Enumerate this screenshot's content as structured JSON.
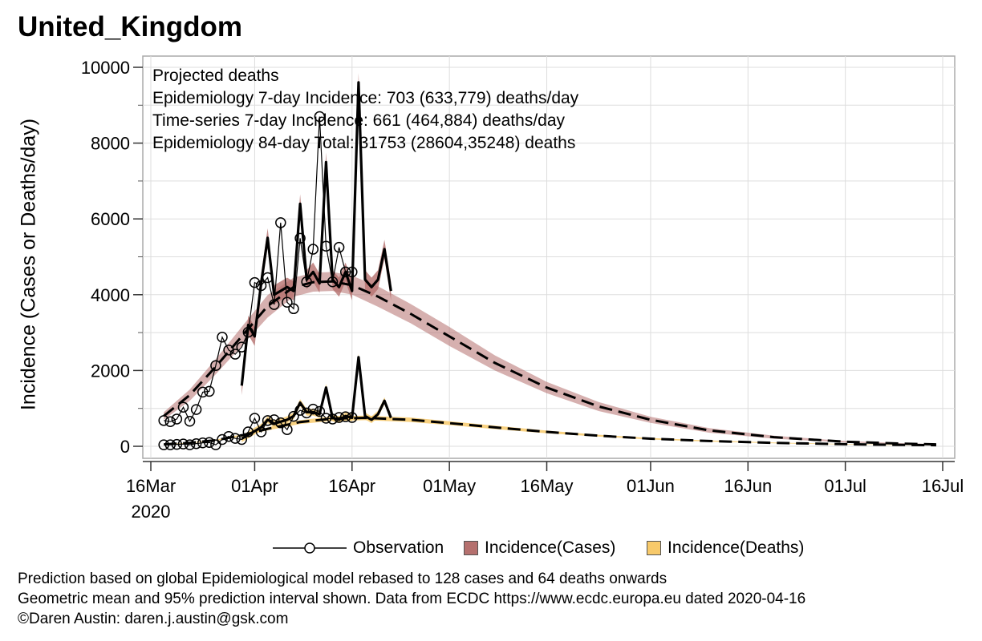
{
  "title": "United_Kingdom",
  "chart_data": {
    "type": "line",
    "ylabel": "Incidence (Cases or Deaths/day)",
    "xlabel": "",
    "ylim": [
      0,
      10000
    ],
    "y_ticks": [
      0,
      2000,
      4000,
      6000,
      8000,
      10000
    ],
    "x_ticks": [
      {
        "date": "2020-03-16",
        "label": "16Mar",
        "sublabel": "2020"
      },
      {
        "date": "2020-04-01",
        "label": "01Apr",
        "sublabel": ""
      },
      {
        "date": "2020-04-16",
        "label": "16Apr",
        "sublabel": ""
      },
      {
        "date": "2020-05-01",
        "label": "01May",
        "sublabel": ""
      },
      {
        "date": "2020-05-16",
        "label": "16May",
        "sublabel": ""
      },
      {
        "date": "2020-06-01",
        "label": "01Jun",
        "sublabel": ""
      },
      {
        "date": "2020-06-16",
        "label": "16Jun",
        "sublabel": ""
      },
      {
        "date": "2020-07-01",
        "label": "01Jul",
        "sublabel": ""
      },
      {
        "date": "2020-07-16",
        "label": "16Jul",
        "sublabel": ""
      }
    ],
    "xlim": [
      "2020-03-16",
      "2020-07-16"
    ],
    "grid": true,
    "annotations": [
      "Projected deaths",
      "Epidemiology 7-day Incidence:  703 (633,779) deaths/day",
      "Time-series 7-day Incidence:  661 (464,884) deaths/day",
      "Epidemiology 84-day  Total:  31753 (28604,35248) deaths"
    ],
    "legend": {
      "position": "bottom",
      "entries": [
        {
          "label": "Observation",
          "color": "#000000"
        },
        {
          "label": "Incidence(Cases)",
          "color": "#b5706e"
        },
        {
          "label": "Incidence(Deaths)",
          "color": "#f7c96a"
        }
      ]
    },
    "series": [
      {
        "role": "cases-observed",
        "x": [
          "2020-03-18",
          "2020-03-19",
          "2020-03-20",
          "2020-03-21",
          "2020-03-22",
          "2020-03-23",
          "2020-03-24",
          "2020-03-25",
          "2020-03-26",
          "2020-03-27",
          "2020-03-28",
          "2020-03-29",
          "2020-03-30",
          "2020-03-31",
          "2020-04-01",
          "2020-04-02",
          "2020-04-03",
          "2020-04-04",
          "2020-04-05",
          "2020-04-06",
          "2020-04-07",
          "2020-04-08",
          "2020-04-09",
          "2020-04-10",
          "2020-04-11",
          "2020-04-12",
          "2020-04-13",
          "2020-04-14",
          "2020-04-15",
          "2020-04-16"
        ],
        "values": [
          680,
          650,
          720,
          1030,
          660,
          970,
          1430,
          1450,
          2130,
          2880,
          2540,
          2430,
          2620,
          3010,
          4320,
          4240,
          4450,
          3740,
          5900,
          3800,
          3630,
          5490,
          4340,
          5200,
          8700,
          5280,
          4340,
          5250,
          4600,
          4600
        ]
      },
      {
        "role": "deaths-observed",
        "x": [
          "2020-03-18",
          "2020-03-19",
          "2020-03-20",
          "2020-03-21",
          "2020-03-22",
          "2020-03-23",
          "2020-03-24",
          "2020-03-25",
          "2020-03-26",
          "2020-03-27",
          "2020-03-28",
          "2020-03-29",
          "2020-03-30",
          "2020-03-31",
          "2020-04-01",
          "2020-04-02",
          "2020-04-03",
          "2020-04-04",
          "2020-04-05",
          "2020-04-06",
          "2020-04-07",
          "2020-04-08",
          "2020-04-09",
          "2020-04-10",
          "2020-04-11",
          "2020-04-12",
          "2020-04-13",
          "2020-04-14",
          "2020-04-15",
          "2020-04-16"
        ],
        "values": [
          40,
          40,
          50,
          60,
          40,
          70,
          90,
          100,
          40,
          180,
          260,
          210,
          180,
          380,
          740,
          380,
          680,
          700,
          620,
          440,
          790,
          950,
          880,
          980,
          920,
          740,
          720,
          760,
          780,
          760
        ]
      },
      {
        "role": "cases-timeseries",
        "x": [
          "2020-03-30",
          "2020-03-31",
          "2020-04-01",
          "2020-04-02",
          "2020-04-03",
          "2020-04-04",
          "2020-04-05",
          "2020-04-06",
          "2020-04-07",
          "2020-04-08",
          "2020-04-09",
          "2020-04-10",
          "2020-04-11",
          "2020-04-12",
          "2020-04-13",
          "2020-04-14",
          "2020-04-15",
          "2020-04-16",
          "2020-04-17",
          "2020-04-18",
          "2020-04-19",
          "2020-04-20",
          "2020-04-21",
          "2020-04-22"
        ],
        "values": [
          1600,
          3200,
          2900,
          4300,
          5500,
          4000,
          4100,
          4200,
          4100,
          6400,
          4400,
          4600,
          4300,
          7500,
          4400,
          4200,
          4600,
          4100,
          9600,
          4400,
          4200,
          4400,
          5200,
          4100
        ]
      },
      {
        "role": "deaths-timeseries",
        "x": [
          "2020-03-30",
          "2020-03-31",
          "2020-04-01",
          "2020-04-02",
          "2020-04-03",
          "2020-04-04",
          "2020-04-05",
          "2020-04-06",
          "2020-04-07",
          "2020-04-08",
          "2020-04-09",
          "2020-04-10",
          "2020-04-11",
          "2020-04-12",
          "2020-04-13",
          "2020-04-14",
          "2020-04-15",
          "2020-04-16",
          "2020-04-17",
          "2020-04-18",
          "2020-04-19",
          "2020-04-20",
          "2020-04-21",
          "2020-04-22"
        ],
        "values": [
          200,
          300,
          400,
          500,
          700,
          600,
          650,
          700,
          800,
          1150,
          900,
          900,
          850,
          1550,
          750,
          700,
          800,
          750,
          2350,
          800,
          700,
          850,
          1200,
          750
        ]
      },
      {
        "role": "cases-epidemiology-projection",
        "x": [
          "2020-03-18",
          "2020-03-22",
          "2020-03-26",
          "2020-03-30",
          "2020-04-03",
          "2020-04-07",
          "2020-04-10",
          "2020-04-13",
          "2020-04-16",
          "2020-04-20",
          "2020-04-25",
          "2020-05-01",
          "2020-05-08",
          "2020-05-16",
          "2020-05-24",
          "2020-06-01",
          "2020-06-10",
          "2020-06-20",
          "2020-07-01",
          "2020-07-10",
          "2020-07-15"
        ],
        "values": [
          800,
          1350,
          2100,
          2900,
          3700,
          4200,
          4330,
          4350,
          4250,
          3950,
          3500,
          2900,
          2200,
          1550,
          1050,
          700,
          420,
          240,
          120,
          70,
          50
        ],
        "band_lower": [
          700,
          1200,
          1900,
          2650,
          3400,
          3950,
          4080,
          4100,
          4000,
          3680,
          3250,
          2650,
          2000,
          1400,
          930,
          620,
          360,
          200,
          100,
          60,
          40
        ],
        "band_upper": [
          900,
          1500,
          2300,
          3150,
          3990,
          4450,
          4580,
          4600,
          4500,
          4220,
          3760,
          3150,
          2400,
          1700,
          1170,
          780,
          480,
          280,
          140,
          80,
          60
        ]
      },
      {
        "role": "deaths-epidemiology-projection",
        "x": [
          "2020-03-18",
          "2020-03-22",
          "2020-03-26",
          "2020-03-30",
          "2020-04-03",
          "2020-04-08",
          "2020-04-13",
          "2020-04-18",
          "2020-04-25",
          "2020-05-01",
          "2020-05-08",
          "2020-05-16",
          "2020-05-24",
          "2020-06-01",
          "2020-06-10",
          "2020-06-20",
          "2020-07-01",
          "2020-07-10",
          "2020-07-15"
        ],
        "values": [
          50,
          90,
          160,
          290,
          460,
          640,
          730,
          750,
          700,
          610,
          500,
          380,
          280,
          200,
          140,
          90,
          55,
          35,
          30
        ],
        "band_lower": [
          45,
          80,
          145,
          265,
          420,
          590,
          670,
          690,
          640,
          560,
          455,
          345,
          255,
          180,
          125,
          80,
          48,
          30,
          26
        ],
        "band_upper": [
          56,
          100,
          175,
          315,
          500,
          690,
          790,
          810,
          760,
          660,
          545,
          415,
          305,
          220,
          155,
          100,
          62,
          40,
          34
        ]
      }
    ]
  },
  "footer": {
    "line1": "Prediction based on global Epidemiological model rebased to 128 cases and 64 deaths onwards",
    "line2": "Geometric mean and 95% prediction interval shown. Data from ECDC https://www.ecdc.europa.eu dated 2020-04-16",
    "line3": "©Daren Austin: daren.j.austin@gsk.com"
  },
  "colors": {
    "cases_band": "#b5706e",
    "deaths_band": "#f7c96a",
    "line": "#000000",
    "grid": "#dddddd",
    "frame": "#aaaaaa"
  }
}
